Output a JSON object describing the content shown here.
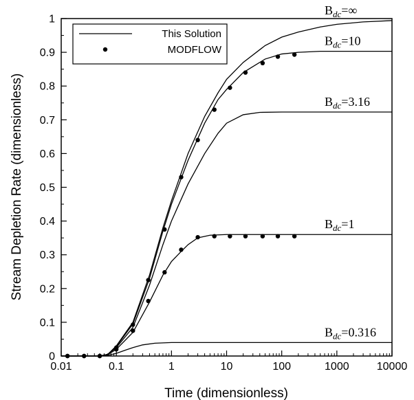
{
  "chart_data": {
    "type": "line",
    "xlabel": "Time (dimensionless)",
    "ylabel": "Stream Depletion Rate (dimensionless)",
    "x_scale": "log",
    "xlim": [
      0.01,
      10000
    ],
    "ylim": [
      0,
      1
    ],
    "x_ticks": [
      "0.01",
      "0.1",
      "1",
      "10",
      "100",
      "1000",
      "10000"
    ],
    "y_ticks": [
      "0",
      "0.1",
      "0.2",
      "0.3",
      "0.4",
      "0.5",
      "0.6",
      "0.7",
      "0.8",
      "0.9",
      "1"
    ],
    "legend": {
      "position": "top-left",
      "entries": [
        {
          "label": "This Solution",
          "marker": "line"
        },
        {
          "label": "MODFLOW",
          "marker": "dot"
        }
      ]
    },
    "series": [
      {
        "name": "This Solution",
        "curve_label": {
          "base": "B",
          "sub": "dc",
          "value": "=∞"
        },
        "x": [
          0.01,
          0.05,
          0.07,
          0.1,
          0.2,
          0.4,
          0.7,
          1,
          2,
          4,
          7,
          10,
          20,
          50,
          100,
          200,
          500,
          1000,
          3000,
          10000
        ],
        "y": [
          0,
          0,
          0.005,
          0.03,
          0.1,
          0.24,
          0.38,
          0.46,
          0.6,
          0.71,
          0.78,
          0.82,
          0.87,
          0.92,
          0.945,
          0.96,
          0.975,
          0.983,
          0.99,
          0.994
        ]
      },
      {
        "name": "This Solution",
        "curve_label": {
          "base": "B",
          "sub": "dc",
          "value": "=10"
        },
        "x": [
          0.01,
          0.05,
          0.07,
          0.1,
          0.2,
          0.4,
          0.7,
          1,
          2,
          4,
          7,
          10,
          20,
          50,
          100,
          200,
          500,
          10000
        ],
        "y": [
          0,
          0,
          0.005,
          0.028,
          0.095,
          0.23,
          0.37,
          0.45,
          0.58,
          0.69,
          0.76,
          0.79,
          0.84,
          0.88,
          0.895,
          0.9,
          0.903,
          0.903
        ]
      },
      {
        "name": "This Solution",
        "curve_label": {
          "base": "B",
          "sub": "dc",
          "value": "=3.16"
        },
        "x": [
          0.01,
          0.05,
          0.07,
          0.1,
          0.2,
          0.4,
          0.7,
          1,
          2,
          4,
          7,
          10,
          20,
          40,
          100,
          10000
        ],
        "y": [
          0,
          0,
          0.005,
          0.025,
          0.085,
          0.21,
          0.33,
          0.4,
          0.51,
          0.6,
          0.66,
          0.69,
          0.715,
          0.722,
          0.723,
          0.723
        ]
      },
      {
        "name": "This Solution",
        "curve_label": {
          "base": "B",
          "sub": "dc",
          "value": "=1"
        },
        "x": [
          0.01,
          0.05,
          0.07,
          0.1,
          0.2,
          0.4,
          0.7,
          1,
          1.5,
          2,
          3,
          5,
          10,
          10000
        ],
        "y": [
          0,
          0,
          0.004,
          0.02,
          0.07,
          0.16,
          0.24,
          0.28,
          0.31,
          0.33,
          0.35,
          0.358,
          0.36,
          0.36
        ]
      },
      {
        "name": "This Solution",
        "curve_label": {
          "base": "B",
          "sub": "dc",
          "value": "=0.316"
        },
        "x": [
          0.01,
          0.05,
          0.07,
          0.1,
          0.15,
          0.2,
          0.3,
          0.5,
          1,
          10000
        ],
        "y": [
          0,
          0,
          0.002,
          0.008,
          0.018,
          0.025,
          0.033,
          0.038,
          0.04,
          0.04
        ]
      },
      {
        "name": "MODFLOW",
        "marker": "dot",
        "x": [
          0.013,
          0.026,
          0.05,
          0.1,
          0.2,
          0.38,
          0.75,
          1.5,
          3,
          6,
          11.5,
          22,
          45,
          85,
          170
        ],
        "y": [
          0,
          0,
          0,
          0.025,
          0.093,
          0.225,
          0.375,
          0.53,
          0.64,
          0.73,
          0.795,
          0.84,
          0.868,
          0.887,
          0.893
        ]
      },
      {
        "name": "MODFLOW",
        "marker": "dot",
        "x": [
          0.013,
          0.026,
          0.05,
          0.1,
          0.2,
          0.38,
          0.75,
          1.5,
          3,
          6,
          11.5,
          22,
          45,
          85,
          170
        ],
        "y": [
          0,
          0,
          0,
          0.02,
          0.075,
          0.163,
          0.248,
          0.315,
          0.352,
          0.355,
          0.355,
          0.355,
          0.355,
          0.355,
          0.355
        ]
      }
    ]
  }
}
